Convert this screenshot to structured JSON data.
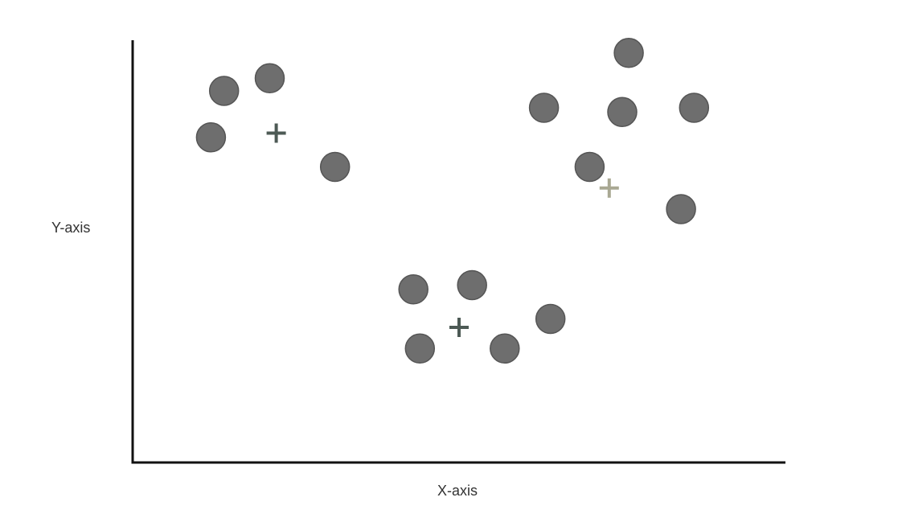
{
  "chart_data": {
    "type": "scatter",
    "title": "",
    "xlabel": "X-axis",
    "ylabel": "Y-axis",
    "xlim": [
      0,
      100
    ],
    "ylim": [
      0,
      100
    ],
    "grid": false,
    "legend": "none",
    "series": [
      {
        "marker": "circle",
        "color": "#6e6e6e",
        "points": [
          {
            "x": 14,
            "y": 88
          },
          {
            "x": 21,
            "y": 91
          },
          {
            "x": 12,
            "y": 77
          },
          {
            "x": 31,
            "y": 70
          },
          {
            "x": 76,
            "y": 97
          },
          {
            "x": 63,
            "y": 84
          },
          {
            "x": 75,
            "y": 83
          },
          {
            "x": 86,
            "y": 84
          },
          {
            "x": 70,
            "y": 70
          },
          {
            "x": 84,
            "y": 60
          },
          {
            "x": 43,
            "y": 41
          },
          {
            "x": 52,
            "y": 42
          },
          {
            "x": 64,
            "y": 34
          },
          {
            "x": 44,
            "y": 27
          },
          {
            "x": 57,
            "y": 27
          }
        ]
      },
      {
        "marker": "plus",
        "points": [
          {
            "x": 22,
            "y": 78,
            "color": "#4d5a55"
          },
          {
            "x": 73,
            "y": 65,
            "color": "#a9a893"
          },
          {
            "x": 50,
            "y": 32,
            "color": "#4d5a55"
          }
        ]
      }
    ]
  }
}
